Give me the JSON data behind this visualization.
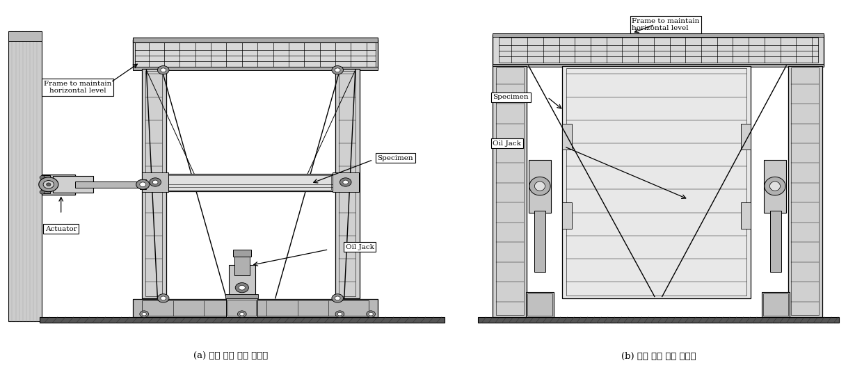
{
  "fig_width": 12.29,
  "fig_height": 5.45,
  "dpi": 100,
  "background_color": "#ffffff",
  "caption_a": "(a) 실험 세팅 계획 정면도",
  "caption_b": "(b) 실험 세팅 계획 측면도",
  "caption_fontsize": 9.5,
  "label_fontsize": 7.5,
  "label_a": {
    "frame_label": "Frame to maintain\nhorizontal level",
    "specimen_label": "Specimen",
    "actuator_label": "Actuator",
    "oiljack_label": "Oil Jack"
  },
  "label_b": {
    "frame_label": "Frame to maintain\nhorizontal level",
    "specimen_label": "Specimen",
    "oiljack_label": "Oil Jack"
  },
  "line_color": "#000000",
  "wall_color": "#b8b8b8",
  "frame_color": "#d0d0d0",
  "dark_color": "#505050",
  "mid_color": "#909090",
  "light_color": "#e8e8e8"
}
